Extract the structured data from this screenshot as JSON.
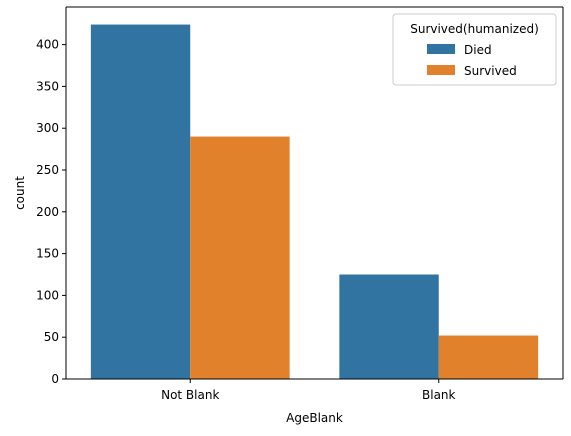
{
  "chart_data": {
    "type": "bar",
    "title": "",
    "xlabel": "AgeBlank",
    "ylabel": "count",
    "categories": [
      "Not Blank",
      "Blank"
    ],
    "series": [
      {
        "name": "Died",
        "values": [
          424,
          125
        ],
        "color": "#3274a1"
      },
      {
        "name": "Survived",
        "values": [
          290,
          52
        ],
        "color": "#e1812c"
      }
    ],
    "ylim": [
      0,
      445
    ],
    "yticks": [
      0,
      50,
      100,
      150,
      200,
      250,
      300,
      350,
      400
    ],
    "grid": false,
    "legend": {
      "title": "Survived(humanized)",
      "placement": "top-right"
    }
  }
}
